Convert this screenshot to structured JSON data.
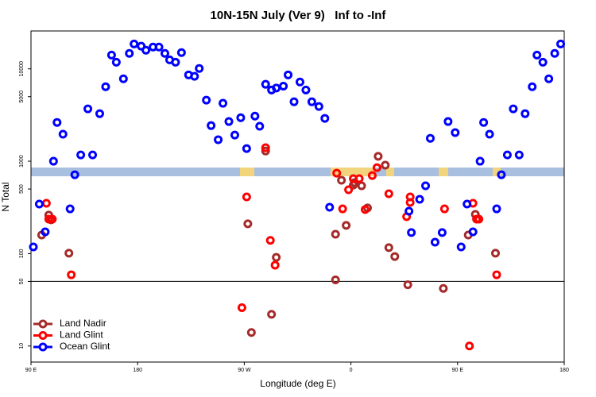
{
  "chart_data": {
    "type": "scatter",
    "title": "10N-15N July (Ver 9)   Inf to -Inf",
    "xlabel": "Longitude (deg E)",
    "ylabel": "N Total",
    "xlim": [
      90,
      540
    ],
    "xticks": [
      {
        "value": 90,
        "label": "90 E"
      },
      180,
      {
        "value": 270,
        "label": "90 W"
      },
      {
        "value": 360,
        "label": "0"
      },
      {
        "value": 450,
        "label": "90 E"
      },
      {
        "value": 540,
        "label": "180"
      }
    ],
    "ylim": [
      6.7,
      25700
    ],
    "log_y": true,
    "yticks": [
      10,
      50,
      100,
      500,
      1000,
      5000,
      10000
    ],
    "hline": 50,
    "legend": "bottom-left",
    "series": [
      {
        "name": "Land Nadir",
        "color": "#a52a2a",
        "x": [
          99,
          105,
          107,
          122,
          273,
          276,
          288,
          293,
          297,
          347,
          347,
          352,
          356,
          362,
          363,
          369,
          374,
          383,
          389,
          392,
          397,
          408,
          438,
          459,
          465,
          482
        ],
        "values": [
          159,
          261,
          232,
          101,
          210,
          14,
          1290,
          22,
          91,
          162,
          52,
          622,
          202,
          552,
          586,
          542,
          312,
          1130,
          906,
          116,
          93,
          46,
          42,
          159,
          266,
          101
        ]
      },
      {
        "name": "Land Glint",
        "color": "#ff0000",
        "x": [
          103,
          105,
          108,
          124,
          268,
          272,
          288,
          292,
          296,
          348,
          353,
          358,
          362,
          367,
          372,
          378,
          382,
          392,
          407,
          410,
          410,
          439,
          460,
          463,
          466,
          468,
          483
        ],
        "values": [
          351,
          236,
          236,
          59,
          26,
          411,
          1400,
          139,
          75,
          743,
          305,
          491,
          647,
          647,
          300,
          700,
          853,
          445,
          251,
          411,
          358,
          305,
          10,
          351,
          236,
          236,
          59
        ]
      },
      {
        "name": "Ocean Glint",
        "color": "#0000ff",
        "x": [
          92,
          97,
          102,
          109,
          112,
          117,
          123,
          127,
          132,
          138,
          142,
          148,
          153,
          158,
          162,
          168,
          173,
          177,
          183,
          187,
          193,
          198,
          203,
          207,
          212,
          217,
          223,
          228,
          232,
          238,
          242,
          248,
          252,
          257,
          262,
          267,
          272,
          279,
          283,
          288,
          293,
          297,
          303,
          307,
          312,
          317,
          322,
          327,
          333,
          338,
          342,
          409,
          411,
          418,
          423,
          427,
          431,
          437,
          442,
          448,
          453,
          458,
          463,
          469,
          472,
          477,
          483,
          487,
          492,
          497,
          502,
          507,
          513,
          517,
          522,
          527,
          532,
          537
        ],
        "values": [
          118,
          344,
          172,
          1000,
          2630,
          1960,
          305,
          714,
          1170,
          3690,
          1170,
          3270,
          6400,
          14100,
          11800,
          7800,
          14700,
          18600,
          17600,
          15900,
          17200,
          17200,
          14700,
          12500,
          11800,
          15000,
          8600,
          8300,
          10100,
          4580,
          2430,
          1710,
          4240,
          2690,
          1920,
          2960,
          1370,
          3080,
          2390,
          6800,
          5900,
          6200,
          6500,
          8600,
          4400,
          7200,
          5900,
          4400,
          3910,
          2910,
          318,
          288,
          169,
          387,
          542,
          1770,
          133,
          169,
          2690,
          2040,
          118,
          344,
          172,
          1000,
          2630,
          1960,
          305,
          714,
          1170,
          3690,
          1170,
          3270,
          6400,
          14100,
          11800,
          7800,
          14700,
          18600
        ]
      }
    ]
  }
}
